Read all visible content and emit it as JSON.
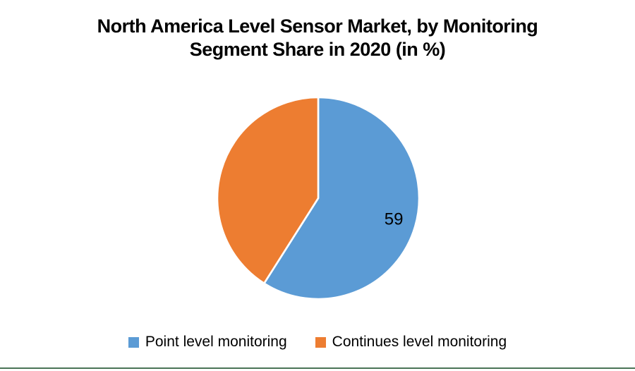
{
  "title": {
    "line1": "North America Level Sensor Market, by Monitoring",
    "line2": "Segment Share in 2020 (in %)"
  },
  "chart_data": {
    "type": "pie",
    "title": "North America Level Sensor Market, by Monitoring Segment Share in 2020 (in %)",
    "unit": "%",
    "start_angle_deg": 0,
    "direction": "clockwise",
    "slices": [
      {
        "label": "Point level monitoring",
        "value": 59,
        "color": "#5B9BD5",
        "data_label": "59"
      },
      {
        "label": "Continues level monitoring",
        "value": 41,
        "color": "#ED7D31",
        "data_label": ""
      }
    ],
    "data_labels_color": "#000000",
    "slice_separator_color": "#ffffff",
    "legend_position": "bottom",
    "background": "#ffffff"
  },
  "footer": {
    "divider_color": "#4a7456"
  }
}
